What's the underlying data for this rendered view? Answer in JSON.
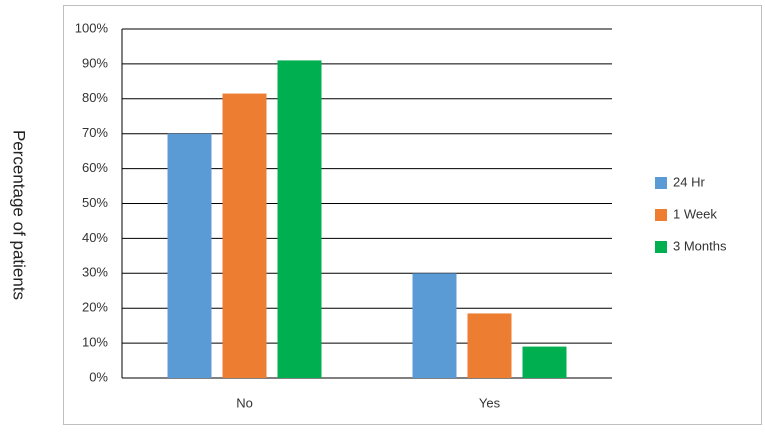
{
  "chart_data": {
    "type": "bar",
    "y_label": "Percentage of patients",
    "categories": [
      "No",
      "Yes"
    ],
    "series": [
      {
        "name": "24 Hr",
        "color": "#5b9bd5",
        "values": [
          70,
          30
        ]
      },
      {
        "name": "1 Week",
        "color": "#ed7d31",
        "values": [
          81.5,
          18.5
        ]
      },
      {
        "name": "3 Months",
        "color": "#00b050",
        "values": [
          91,
          9
        ]
      }
    ],
    "ylim": [
      0,
      100
    ],
    "yticks": [
      {
        "value": 0,
        "label": "0%"
      },
      {
        "value": 10,
        "label": "10%"
      },
      {
        "value": 20,
        "label": "20%"
      },
      {
        "value": 30,
        "label": "30%"
      },
      {
        "value": 40,
        "label": "40%"
      },
      {
        "value": 50,
        "label": "50%"
      },
      {
        "value": 60,
        "label": "60%"
      },
      {
        "value": 70,
        "label": "70%"
      },
      {
        "value": 80,
        "label": "80%"
      },
      {
        "value": 90,
        "label": "90%"
      },
      {
        "value": 100,
        "label": "100%"
      }
    ],
    "grid": true,
    "legend": "right"
  }
}
